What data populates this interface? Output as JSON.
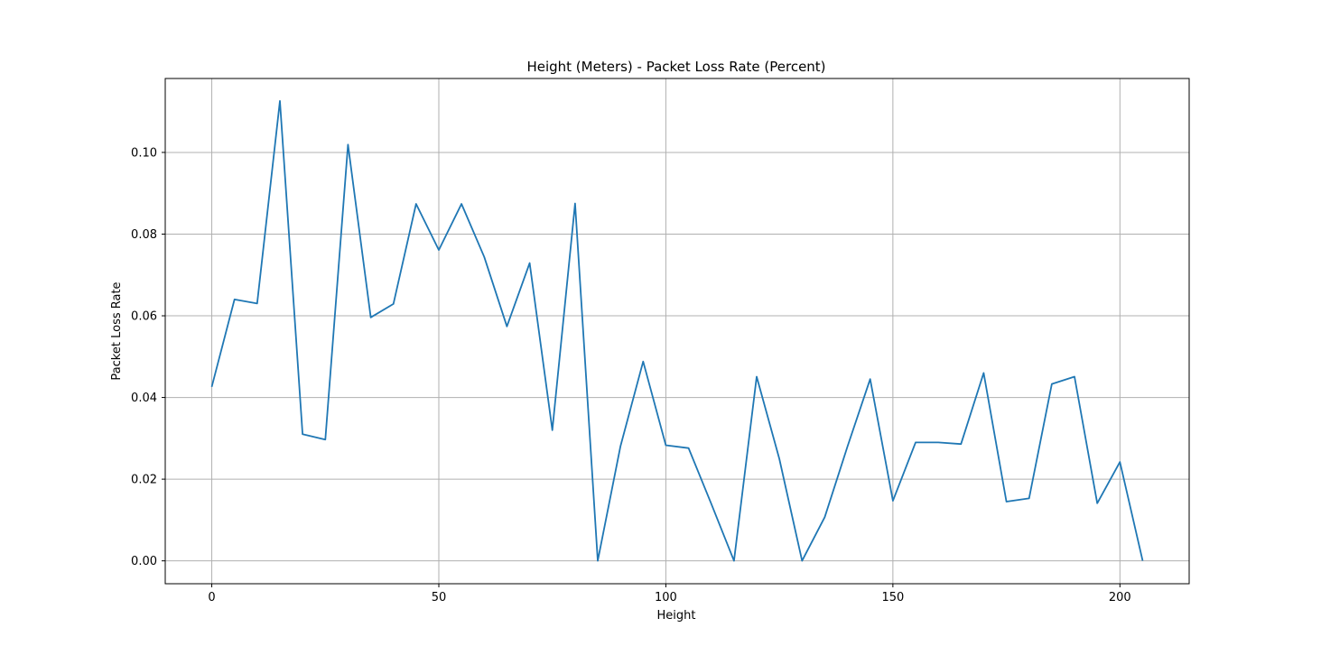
{
  "chart_data": {
    "type": "line",
    "title": "Height (Meters) - Packet Loss Rate (Percent)",
    "xlabel": "Height",
    "ylabel": "Packet Loss Rate",
    "xlim": [
      -10.25,
      215.25
    ],
    "ylim": [
      -0.0056,
      0.1181
    ],
    "grid": true,
    "line_color": "#1f77b4",
    "xticks": [
      0,
      50,
      100,
      150,
      200
    ],
    "xtick_labels": [
      "0",
      "50",
      "100",
      "150",
      "200"
    ],
    "yticks": [
      0.0,
      0.02,
      0.04,
      0.06,
      0.08,
      0.1
    ],
    "ytick_labels": [
      "0.00",
      "0.02",
      "0.04",
      "0.06",
      "0.08",
      "0.10"
    ],
    "series": [
      {
        "x": [
          0,
          5,
          10,
          15,
          20,
          25,
          30,
          35,
          40,
          45,
          50,
          55,
          60,
          65,
          70,
          75,
          80,
          85,
          90,
          95,
          100,
          105,
          110,
          115,
          120,
          125,
          130,
          135,
          140,
          145,
          150,
          155,
          160,
          165,
          170,
          175,
          180,
          185,
          190,
          195,
          200,
          205
        ],
        "values": [
          0.0426,
          0.064,
          0.063,
          0.1126,
          0.031,
          0.0297,
          0.1019,
          0.0596,
          0.0629,
          0.0874,
          0.0761,
          0.0874,
          0.0744,
          0.0574,
          0.0729,
          0.032,
          0.0875,
          0.0,
          0.028,
          0.0488,
          0.0283,
          0.0276,
          0.014,
          0.0,
          0.0451,
          0.025,
          0.0,
          0.0107,
          0.028,
          0.0445,
          0.0147,
          0.029,
          0.029,
          0.0286,
          0.046,
          0.0145,
          0.0153,
          0.0433,
          0.0451,
          0.0141,
          0.0242,
          0.0
        ]
      }
    ]
  }
}
